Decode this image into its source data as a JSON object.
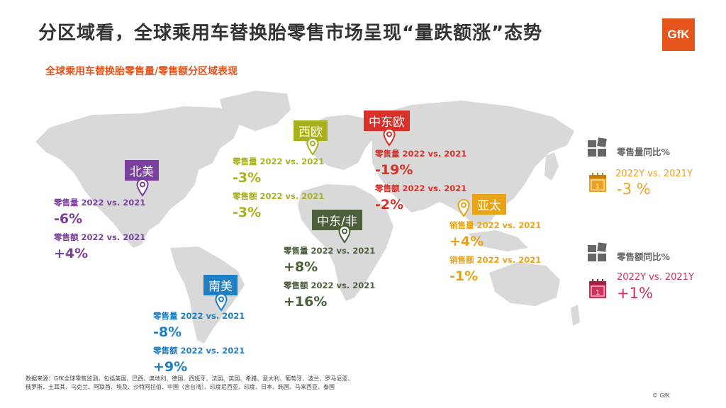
{
  "header": {
    "title": "分区域看，全球乘用车替换胎零售市场呈现“量跌额涨”态势",
    "logo_text": "GfK",
    "subtitle": "全球乘用车替换胎零售量/零售额分区域表现"
  },
  "regions": {
    "north_america": {
      "name": "北美",
      "color": "#7b3f9e",
      "vol_label": "零售量 2022 vs. 2021",
      "vol": "-6%",
      "amt_label": "零售额 2022 vs. 2021",
      "amt": "+4%"
    },
    "south_america": {
      "name": "南美",
      "color": "#1f7fc4",
      "vol_label": "零售量 2022 vs. 2021",
      "vol": "-8%",
      "amt_label": "零售额 2022 vs. 2021",
      "amt": "+9%"
    },
    "west_europe": {
      "name": "西欧",
      "color": "#a8b11c",
      "vol_label": "零售量 2022 vs. 2021",
      "vol": "-3%",
      "amt_label": "零售额 2022 vs. 2021",
      "amt": "-3%"
    },
    "central_east_europe": {
      "name": "中东欧",
      "color": "#d7312a",
      "vol_label": "零售量 2022 vs. 2021",
      "vol": "-19%",
      "amt_label": "零售额 2022 vs. 2021",
      "amt": "-2%"
    },
    "middle_east_africa": {
      "name": "中东/非",
      "color": "#4a5f3a",
      "vol_label": "零售量 2022 vs. 2021",
      "vol": "+8%",
      "amt_label": "零售额 2022 vs. 2021",
      "amt": "+16%"
    },
    "asia_pacific": {
      "name": "亚太",
      "color": "#e8a317",
      "vol_label": "销售量 2022 vs. 2021",
      "vol": "+4%",
      "amt_label": "销售额 2022 vs. 2021",
      "amt": "-1%"
    }
  },
  "sidebar": {
    "volume": {
      "title": "零售量同比%",
      "period": "2022Y vs. 2021Y",
      "value": "-3 %",
      "color": "#f0a020",
      "calendar_day": "1"
    },
    "amount": {
      "title": "零售额同比%",
      "period": "2022Y vs. 2021Y",
      "value": "+1%",
      "color": "#d0305a",
      "calendar_day": "1"
    }
  },
  "footer": {
    "source_line1": "数据来源：GfK全球零售监测，包括美国、巴西、奥地利、德国、西班牙、法国、英国、希腊、意大利、葡萄牙、波兰、罗马尼亚、",
    "source_line2": "俄罗斯、土耳其、乌克兰、阿联酋、埃及、沙特阿拉伯、中国（含台湾）、印度尼西亚、印度、日本、韩国、马来西亚、泰国",
    "copyright": "© GfK"
  }
}
